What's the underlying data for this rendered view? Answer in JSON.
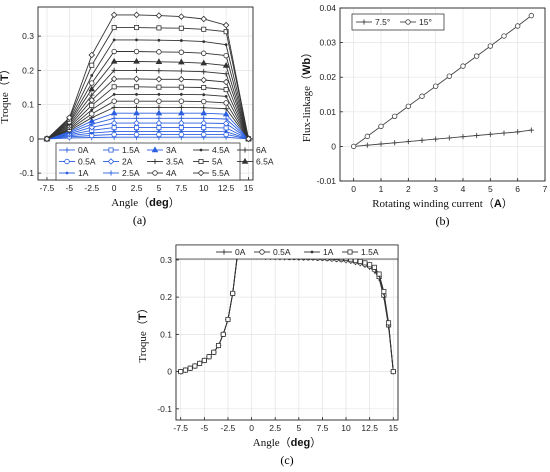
{
  "chart_data": [
    {
      "id": "a",
      "type": "line",
      "panel_label": "(a)",
      "xlabel": "Angle",
      "xlabel_unit": "deg",
      "ylabel": "Troque",
      "ylabel_unit": "T",
      "xlim": [
        -8.5,
        15.5
      ],
      "ylim": [
        -0.12,
        0.385
      ],
      "xticks": [
        -7.5,
        -5,
        -2.5,
        0,
        2.5,
        5,
        7.5,
        10,
        12.5,
        15
      ],
      "xtick_labels": [
        "-7.5",
        "-5",
        "-2.5",
        "0",
        "2.5",
        "5",
        "7.5",
        "10",
        "12.5",
        "15"
      ],
      "yticks": [
        -0.1,
        0,
        0.1,
        0.2,
        0.3
      ],
      "ytick_labels": [
        "-0.1",
        "0",
        "0.1",
        "0.2",
        "0.3"
      ],
      "grid": true,
      "legend_position": "bottom-center",
      "x": [
        -8.5,
        -7.5,
        -5,
        -2.5,
        0,
        2.5,
        5,
        7.5,
        10,
        12.5,
        15,
        15.5
      ],
      "series": [
        {
          "name": "0A",
          "color": "#2c5fe0",
          "marker": "plus",
          "values": [
            0,
            0,
            0.003,
            0.004,
            0.005,
            0.005,
            0.005,
            0.005,
            0.005,
            0.005,
            0,
            0
          ]
        },
        {
          "name": "0.5A",
          "color": "#2c5fe0",
          "marker": "circle",
          "values": [
            0,
            0,
            0.006,
            0.01,
            0.013,
            0.013,
            0.013,
            0.013,
            0.013,
            0.013,
            0,
            0
          ]
        },
        {
          "name": "1A",
          "color": "#2c5fe0",
          "marker": "dot",
          "values": [
            0,
            0,
            0.009,
            0.017,
            0.022,
            0.022,
            0.022,
            0.022,
            0.022,
            0.021,
            0,
            0
          ]
        },
        {
          "name": "1.5A",
          "color": "#2c5fe0",
          "marker": "square",
          "values": [
            0,
            0,
            0.012,
            0.025,
            0.033,
            0.033,
            0.033,
            0.033,
            0.033,
            0.032,
            0,
            0
          ]
        },
        {
          "name": "2A",
          "color": "#2c5fe0",
          "marker": "diamond",
          "values": [
            0,
            0,
            0.015,
            0.034,
            0.046,
            0.046,
            0.046,
            0.046,
            0.046,
            0.045,
            0,
            0
          ]
        },
        {
          "name": "2.5A",
          "color": "#2c5fe0",
          "marker": "plus",
          "values": [
            0,
            0,
            0.018,
            0.043,
            0.06,
            0.06,
            0.06,
            0.06,
            0.06,
            0.058,
            0,
            0
          ]
        },
        {
          "name": "3A",
          "color": "#2c5fe0",
          "marker": "triangle",
          "values": [
            0,
            0,
            0.021,
            0.052,
            0.075,
            0.075,
            0.075,
            0.075,
            0.075,
            0.072,
            0,
            0
          ]
        },
        {
          "name": "3.5A",
          "color": "#333333",
          "marker": "plus",
          "values": [
            0,
            0,
            0.024,
            0.062,
            0.092,
            0.092,
            0.092,
            0.092,
            0.091,
            0.088,
            0,
            0
          ]
        },
        {
          "name": "4A",
          "color": "#333333",
          "marker": "circle",
          "values": [
            0,
            0,
            0.027,
            0.073,
            0.11,
            0.11,
            0.11,
            0.11,
            0.109,
            0.105,
            0,
            0
          ]
        },
        {
          "name": "4.5A",
          "color": "#333333",
          "marker": "dot",
          "values": [
            0,
            0,
            0.03,
            0.085,
            0.13,
            0.13,
            0.13,
            0.13,
            0.129,
            0.124,
            0,
            0
          ]
        },
        {
          "name": "5A",
          "color": "#333333",
          "marker": "square",
          "values": [
            0,
            0,
            0.034,
            0.098,
            0.152,
            0.152,
            0.151,
            0.151,
            0.15,
            0.144,
            0,
            0
          ]
        },
        {
          "name": "5.5A",
          "color": "#333333",
          "marker": "diamond",
          "values": [
            0,
            0,
            0.038,
            0.113,
            0.175,
            0.175,
            0.174,
            0.174,
            0.172,
            0.166,
            0,
            0
          ]
        },
        {
          "name": "6A",
          "color": "#333333",
          "marker": "plus",
          "values": [
            0,
            0,
            0.042,
            0.128,
            0.2,
            0.2,
            0.199,
            0.198,
            0.196,
            0.19,
            0,
            0
          ]
        },
        {
          "name": "6.5A",
          "color": "#333333",
          "marker": "triangle",
          "values": [
            0,
            0,
            0.046,
            0.145,
            0.226,
            0.226,
            0.225,
            0.224,
            0.221,
            0.214,
            0,
            0
          ]
        },
        {
          "name": "",
          "color": "#333333",
          "marker": "circle",
          "values": [
            0,
            0,
            0.05,
            0.163,
            0.255,
            0.255,
            0.254,
            0.253,
            0.25,
            0.243,
            0,
            0
          ]
        },
        {
          "name": "",
          "color": "#333333",
          "marker": "dot",
          "values": [
            0,
            0,
            0.054,
            0.185,
            0.289,
            0.289,
            0.288,
            0.287,
            0.284,
            0.275,
            0,
            0
          ]
        },
        {
          "name": "",
          "color": "#333333",
          "marker": "square",
          "values": [
            0,
            0,
            0.058,
            0.215,
            0.325,
            0.325,
            0.324,
            0.323,
            0.32,
            0.313,
            0,
            0
          ]
        },
        {
          "name": "",
          "color": "#333333",
          "marker": "diamond",
          "values": [
            0,
            0,
            0.062,
            0.245,
            0.362,
            0.362,
            0.36,
            0.357,
            0.35,
            0.332,
            0,
            0
          ]
        }
      ],
      "legend": {
        "columns": 4,
        "rows": [
          [
            "0A",
            "1.5A",
            "3A",
            "4.5A",
            "6A"
          ],
          [
            "0.5A",
            "2A",
            "3.5A",
            "5A",
            "6.5A"
          ],
          [
            "1A",
            "2.5A",
            "4A",
            "5.5A"
          ]
        ]
      }
    },
    {
      "id": "b",
      "type": "line",
      "panel_label": "(b)",
      "xlabel": "Rotating winding current",
      "xlabel_unit": "A",
      "ylabel": "Flux-linkage",
      "ylabel_unit": "Wb",
      "xlim": [
        -0.5,
        7
      ],
      "ylim": [
        -0.01,
        0.04
      ],
      "xticks": [
        0,
        1,
        2,
        3,
        4,
        5,
        6,
        7
      ],
      "xtick_labels": [
        "0",
        "1",
        "2",
        "3",
        "4",
        "5",
        "6",
        "7"
      ],
      "yticks": [
        -0.01,
        0,
        0.01,
        0.02,
        0.03,
        0.04
      ],
      "ytick_labels": [
        "-0.01",
        "0",
        "0.01",
        "0.02",
        "0.03",
        "0.04"
      ],
      "grid": true,
      "legend_position": "top-left",
      "x": [
        0,
        0.5,
        1,
        1.5,
        2,
        2.5,
        3,
        3.5,
        4,
        4.5,
        5,
        5.5,
        6,
        6.5
      ],
      "series": [
        {
          "name": "7.5°",
          "color": "#444444",
          "marker": "plus",
          "values": [
            0,
            0.00035,
            0.0007,
            0.00105,
            0.0014,
            0.00175,
            0.0021,
            0.00245,
            0.0028,
            0.00315,
            0.0035,
            0.00385,
            0.0042,
            0.0047
          ]
        },
        {
          "name": "15°",
          "color": "#444444",
          "marker": "circle",
          "values": [
            0,
            0.0029,
            0.0058,
            0.0087,
            0.0116,
            0.0145,
            0.0174,
            0.0203,
            0.0232,
            0.0261,
            0.029,
            0.0319,
            0.0348,
            0.0378
          ]
        }
      ]
    },
    {
      "id": "c",
      "type": "line",
      "panel_label": "(c)",
      "xlabel": "Angle",
      "xlabel_unit": "deg",
      "ylabel": "Troque",
      "ylabel_unit": "T",
      "xlim": [
        -8,
        15.5
      ],
      "ylim": [
        -0.13,
        0.34
      ],
      "xticks": [
        -7.5,
        -5,
        -2.5,
        0,
        2.5,
        5,
        7.5,
        10,
        12.5,
        15
      ],
      "xtick_labels": [
        "-7.5",
        "-5",
        "-2.5",
        "0",
        "2.5",
        "5",
        "7.5",
        "10",
        "12.5",
        "15"
      ],
      "yticks": [
        -0.1,
        0,
        0.1,
        0.2,
        0.3
      ],
      "ytick_labels": [
        "-0.1",
        "0",
        "0.1",
        "0.2",
        "0.3"
      ],
      "grid": true,
      "legend_position": "top",
      "x": [
        -7.5,
        -7,
        -6.5,
        -6,
        -5.5,
        -5,
        -4.5,
        -4,
        -3.5,
        -3,
        -2.5,
        -2,
        -1.5,
        -1,
        -0.5,
        0,
        0.5,
        1,
        1.5,
        2,
        2.5,
        3,
        3.5,
        4,
        4.5,
        5,
        5.5,
        6,
        6.5,
        7,
        7.5,
        8,
        8.5,
        9,
        9.5,
        10,
        10.5,
        11,
        11.5,
        12,
        12.5,
        13,
        13.5,
        14,
        14.5,
        15
      ],
      "series": [
        {
          "name": "0A",
          "color": "#333333",
          "marker": "plus",
          "values": [
            0,
            0.004,
            0.009,
            0.015,
            0.022,
            0.03,
            0.04,
            0.052,
            0.07,
            0.1,
            0.14,
            0.21,
            0.31,
            0.311,
            0.31,
            0.309,
            0.308,
            0.308,
            0.307,
            0.307,
            0.307,
            0.306,
            0.306,
            0.306,
            0.306,
            0.305,
            0.305,
            0.305,
            0.305,
            0.304,
            0.304,
            0.303,
            0.302,
            0.301,
            0.3,
            0.298,
            0.296,
            0.293,
            0.29,
            0.285,
            0.28,
            0.27,
            0.25,
            0.2,
            0.12,
            0
          ]
        },
        {
          "name": "0.5A",
          "color": "#333333",
          "marker": "circle",
          "values": [
            0,
            0.004,
            0.009,
            0.015,
            0.022,
            0.03,
            0.04,
            0.052,
            0.07,
            0.1,
            0.14,
            0.21,
            0.312,
            0.313,
            0.312,
            0.311,
            0.31,
            0.31,
            0.309,
            0.309,
            0.308,
            0.308,
            0.308,
            0.307,
            0.307,
            0.307,
            0.306,
            0.306,
            0.306,
            0.305,
            0.305,
            0.304,
            0.303,
            0.302,
            0.301,
            0.3,
            0.298,
            0.295,
            0.292,
            0.288,
            0.283,
            0.274,
            0.255,
            0.205,
            0.125,
            0
          ]
        },
        {
          "name": "1A",
          "color": "#333333",
          "marker": "dot",
          "values": [
            0,
            0.004,
            0.009,
            0.015,
            0.022,
            0.03,
            0.04,
            0.052,
            0.07,
            0.1,
            0.14,
            0.21,
            0.314,
            0.315,
            0.314,
            0.313,
            0.312,
            0.312,
            0.311,
            0.311,
            0.31,
            0.31,
            0.309,
            0.309,
            0.309,
            0.308,
            0.308,
            0.308,
            0.307,
            0.307,
            0.306,
            0.306,
            0.305,
            0.304,
            0.303,
            0.302,
            0.3,
            0.297,
            0.294,
            0.29,
            0.285,
            0.277,
            0.258,
            0.21,
            0.128,
            0
          ]
        },
        {
          "name": "1.5A",
          "color": "#333333",
          "marker": "square",
          "values": [
            0,
            0.004,
            0.009,
            0.015,
            0.022,
            0.03,
            0.04,
            0.052,
            0.07,
            0.1,
            0.14,
            0.21,
            0.316,
            0.317,
            0.316,
            0.315,
            0.314,
            0.314,
            0.313,
            0.313,
            0.312,
            0.312,
            0.311,
            0.311,
            0.311,
            0.31,
            0.31,
            0.31,
            0.309,
            0.309,
            0.308,
            0.308,
            0.307,
            0.306,
            0.305,
            0.304,
            0.302,
            0.299,
            0.296,
            0.292,
            0.287,
            0.28,
            0.262,
            0.215,
            0.131,
            0
          ]
        }
      ]
    }
  ]
}
